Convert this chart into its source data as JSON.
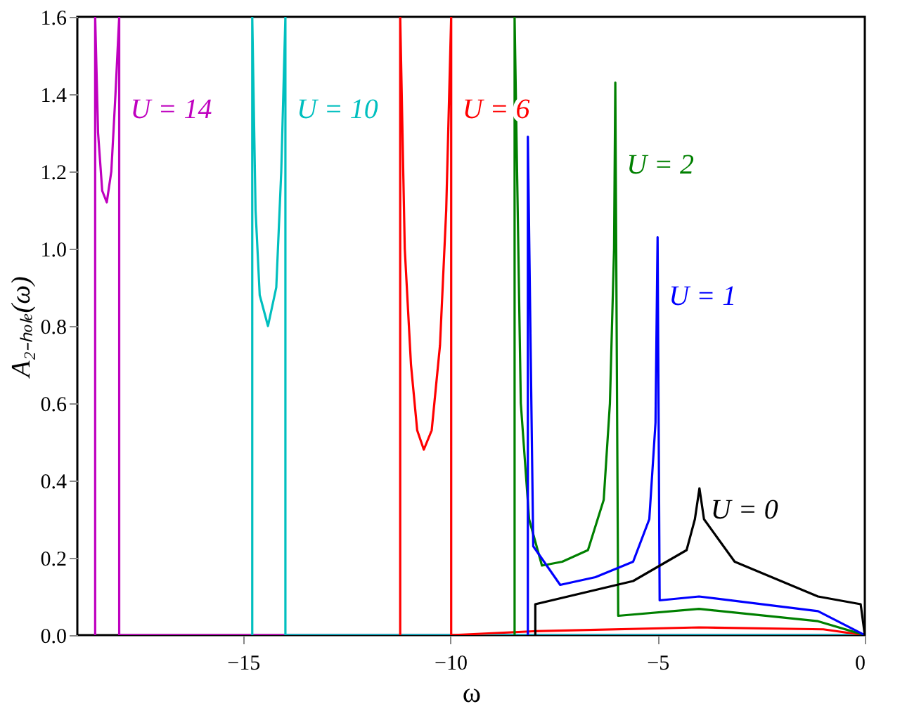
{
  "chart_data": {
    "type": "line",
    "xlabel": "ω",
    "ylabel": "A₂₋ₕₒₗₑ(ω)",
    "xlim": [
      -19,
      0
    ],
    "ylim": [
      0,
      1.6
    ],
    "xticks": [
      {
        "value": -15,
        "label": "−15"
      },
      {
        "value": -10,
        "label": "−10"
      },
      {
        "value": -5,
        "label": "−5"
      },
      {
        "value": 0,
        "label": "0"
      }
    ],
    "yticks": [
      {
        "value": 0,
        "label": "0.0"
      },
      {
        "value": 0.2,
        "label": "0.2"
      },
      {
        "value": 0.4,
        "label": "0.4"
      },
      {
        "value": 0.6,
        "label": "0.6"
      },
      {
        "value": 0.8,
        "label": "0.8"
      },
      {
        "value": 1.0,
        "label": "1.0"
      },
      {
        "value": 1.2,
        "label": "1.2"
      },
      {
        "value": 1.4,
        "label": "1.4"
      },
      {
        "value": 1.6,
        "label": "1.6"
      }
    ],
    "grid": false,
    "legend": false,
    "line_style": "solid",
    "marker": "none",
    "series": [
      {
        "name": "U = 14",
        "color": "#bf00bf",
        "x": [
          -18.57,
          -18.57,
          -18.5,
          -18.4,
          -18.29,
          -18.18,
          -18.08,
          -17.99,
          -17.99,
          0
        ],
        "values": [
          0,
          1.6,
          1.3,
          1.15,
          1.12,
          1.2,
          1.4,
          1.6,
          0,
          0
        ]
      },
      {
        "name": "U = 10",
        "color": "#00bfbf",
        "x": [
          -14.78,
          -14.78,
          -14.7,
          -14.6,
          -14.4,
          -14.2,
          -14.08,
          -13.98,
          -13.98,
          0
        ],
        "values": [
          0,
          1.6,
          1.1,
          0.88,
          0.8,
          0.9,
          1.2,
          1.6,
          0,
          0
        ]
      },
      {
        "name": "U = 6",
        "color": "#ff0000",
        "x": [
          -11.21,
          -11.21,
          -11.1,
          -10.95,
          -10.8,
          -10.64,
          -10.45,
          -10.25,
          -10.1,
          -9.98,
          -9.98,
          -8,
          -4,
          -1,
          0
        ],
        "values": [
          0,
          1.6,
          1.0,
          0.7,
          0.53,
          0.48,
          0.53,
          0.75,
          1.1,
          1.6,
          0,
          0.01,
          0.02,
          0.015,
          0
        ]
      },
      {
        "name": "U = 2",
        "color": "#008000",
        "x": [
          -8.45,
          -8.45,
          -8.3,
          -8.1,
          -7.79,
          -7.3,
          -6.68,
          -6.3,
          -6.15,
          -6.05,
          -6.02,
          -5.95,
          -4,
          -1.13,
          0
        ],
        "values": [
          0,
          1.6,
          0.6,
          0.3,
          0.18,
          0.19,
          0.22,
          0.35,
          0.6,
          1.0,
          1.43,
          0.05,
          0.068,
          0.036,
          0
        ]
      },
      {
        "name": "U = 1",
        "color": "#0000ff",
        "x": [
          -8.13,
          -8.13,
          -8.0,
          -7.35,
          -6.5,
          -5.59,
          -5.2,
          -5.05,
          -5.0,
          -4.95,
          -4,
          -1.13,
          0
        ],
        "values": [
          0,
          1.29,
          0.23,
          0.13,
          0.15,
          0.19,
          0.3,
          0.55,
          1.03,
          0.09,
          0.1,
          0.062,
          0
        ]
      },
      {
        "name": "U = 0",
        "color": "#000000",
        "x": [
          -7.95,
          -7.95,
          -5.59,
          -4.3,
          -4.1,
          -3.99,
          -3.88,
          -3.14,
          -1.13,
          -0.1,
          0
        ],
        "values": [
          0,
          0.08,
          0.14,
          0.22,
          0.3,
          0.38,
          0.3,
          0.19,
          0.1,
          0.08,
          0
        ]
      }
    ]
  }
}
